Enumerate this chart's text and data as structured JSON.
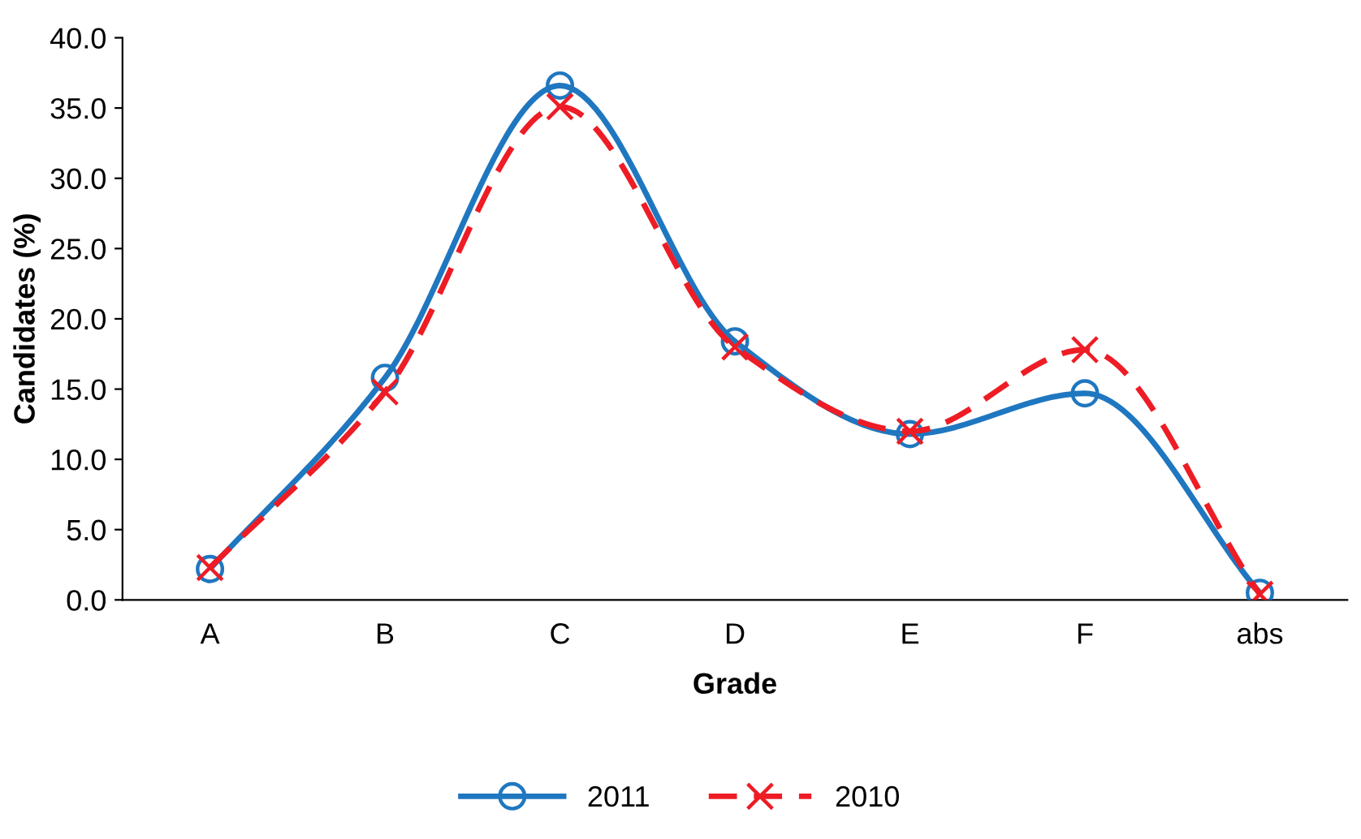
{
  "chart_data": {
    "type": "line",
    "xlabel": "Grade",
    "ylabel": "Candidates (%)",
    "categories": [
      "A",
      "B",
      "C",
      "D",
      "E",
      "F",
      "abs"
    ],
    "ylim": [
      0,
      40
    ],
    "yticks": [
      {
        "value": 0,
        "label": "0.0"
      },
      {
        "value": 5,
        "label": "5.0"
      },
      {
        "value": 10,
        "label": "10.0"
      },
      {
        "value": 15,
        "label": "15.0"
      },
      {
        "value": 20,
        "label": "20.0"
      },
      {
        "value": 25,
        "label": "25.0"
      },
      {
        "value": 30,
        "label": "30.0"
      },
      {
        "value": 35,
        "label": "35.0"
      },
      {
        "value": 40,
        "label": "40.0"
      }
    ],
    "grid": false,
    "legend": "bottom",
    "series": [
      {
        "name": "2011",
        "color": "#1f77c0",
        "marker": "circle",
        "line_style": "solid",
        "values": [
          2.2,
          15.8,
          36.6,
          18.4,
          11.8,
          14.7,
          0.5
        ]
      },
      {
        "name": "2010",
        "color": "#ee1c25",
        "marker": "cross",
        "line_style": "dashed",
        "values": [
          2.3,
          14.8,
          35.1,
          18.0,
          12.0,
          17.8,
          0.4
        ]
      }
    ]
  }
}
